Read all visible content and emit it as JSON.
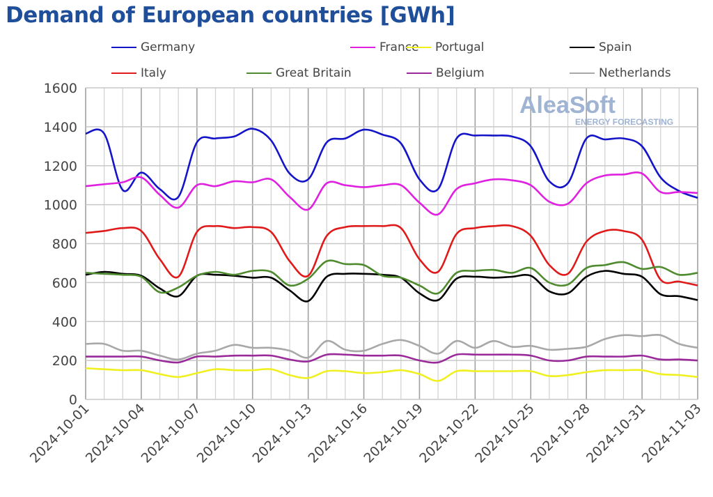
{
  "chart_data": {
    "type": "line",
    "title": "Demand of European countries [GWh]",
    "xlabel": "",
    "ylabel": "",
    "ylim": [
      0,
      1600
    ],
    "yticks": [
      "0",
      "200",
      "400",
      "600",
      "800",
      "1000",
      "1200",
      "1400",
      "1600"
    ],
    "xticks": [
      "2024-10-01",
      "2024-10-04",
      "2024-10-07",
      "2024-10-10",
      "2024-10-13",
      "2024-10-16",
      "2024-10-19",
      "2024-10-22",
      "2024-10-25",
      "2024-10-28",
      "2024-10-31",
      "2024-11-03"
    ],
    "grid": true,
    "legend_position": "top",
    "x": [
      "2024-10-01",
      "2024-10-02",
      "2024-10-03",
      "2024-10-04",
      "2024-10-05",
      "2024-10-06",
      "2024-10-07",
      "2024-10-08",
      "2024-10-09",
      "2024-10-10",
      "2024-10-11",
      "2024-10-12",
      "2024-10-13",
      "2024-10-14",
      "2024-10-15",
      "2024-10-16",
      "2024-10-17",
      "2024-10-18",
      "2024-10-19",
      "2024-10-20",
      "2024-10-21",
      "2024-10-22",
      "2024-10-23",
      "2024-10-24",
      "2024-10-25",
      "2024-10-26",
      "2024-10-27",
      "2024-10-28",
      "2024-10-29",
      "2024-10-30",
      "2024-10-31",
      "2024-11-01",
      "2024-11-02",
      "2024-11-03"
    ],
    "series": [
      {
        "name": "Germany",
        "color": "#1414c8",
        "values": [
          1365,
          1365,
          1075,
          1165,
          1080,
          1040,
          1320,
          1340,
          1350,
          1390,
          1330,
          1160,
          1130,
          1320,
          1340,
          1385,
          1360,
          1315,
          1130,
          1080,
          1340,
          1355,
          1355,
          1350,
          1300,
          1120,
          1110,
          1340,
          1335,
          1340,
          1300,
          1140,
          1070,
          1035
        ]
      },
      {
        "name": "France",
        "color": "#e020e0",
        "values": [
          1095,
          1105,
          1115,
          1140,
          1050,
          985,
          1100,
          1095,
          1120,
          1115,
          1130,
          1040,
          975,
          1110,
          1100,
          1090,
          1100,
          1100,
          1010,
          950,
          1080,
          1110,
          1130,
          1125,
          1100,
          1015,
          1005,
          1110,
          1150,
          1155,
          1160,
          1065,
          1065,
          1060
        ]
      },
      {
        "name": "Portugal",
        "color": "#f0f020",
        "values": [
          160,
          155,
          150,
          150,
          130,
          115,
          135,
          155,
          150,
          150,
          155,
          125,
          110,
          145,
          145,
          135,
          140,
          150,
          130,
          95,
          145,
          145,
          145,
          145,
          145,
          120,
          125,
          140,
          150,
          150,
          150,
          130,
          125,
          115
        ]
      },
      {
        "name": "Spain",
        "color": "#000000",
        "values": [
          640,
          655,
          645,
          635,
          570,
          530,
          635,
          640,
          635,
          625,
          625,
          560,
          505,
          630,
          645,
          645,
          640,
          625,
          545,
          510,
          620,
          630,
          625,
          630,
          635,
          555,
          545,
          630,
          660,
          645,
          630,
          540,
          530,
          510
        ]
      },
      {
        "name": "Italy",
        "color": "#e01a1a",
        "values": [
          855,
          865,
          880,
          865,
          720,
          630,
          860,
          890,
          880,
          885,
          860,
          710,
          635,
          840,
          885,
          890,
          890,
          880,
          720,
          655,
          850,
          880,
          890,
          890,
          840,
          690,
          645,
          810,
          865,
          865,
          820,
          615,
          605,
          585
        ]
      },
      {
        "name": "Great Britain",
        "color": "#4e8a2e",
        "values": [
          650,
          645,
          640,
          630,
          550,
          575,
          635,
          655,
          640,
          660,
          655,
          585,
          620,
          710,
          695,
          690,
          635,
          625,
          585,
          545,
          650,
          660,
          665,
          650,
          675,
          600,
          590,
          675,
          690,
          705,
          670,
          680,
          640,
          650
        ]
      },
      {
        "name": "Belgium",
        "color": "#9a2a9a",
        "values": [
          220,
          220,
          220,
          220,
          200,
          190,
          220,
          220,
          225,
          225,
          225,
          205,
          195,
          230,
          230,
          225,
          225,
          225,
          200,
          190,
          230,
          230,
          230,
          230,
          225,
          200,
          200,
          220,
          220,
          220,
          225,
          205,
          205,
          200
        ]
      },
      {
        "name": "Netherlands",
        "color": "#a8a8a8",
        "values": [
          285,
          285,
          250,
          250,
          225,
          205,
          235,
          250,
          280,
          265,
          265,
          250,
          215,
          300,
          255,
          250,
          285,
          305,
          275,
          235,
          300,
          265,
          300,
          270,
          275,
          255,
          260,
          270,
          310,
          330,
          325,
          330,
          285,
          265
        ]
      }
    ]
  },
  "watermark": {
    "brand": "AleaSoft",
    "tagline": "ENERGY FORECASTING"
  }
}
